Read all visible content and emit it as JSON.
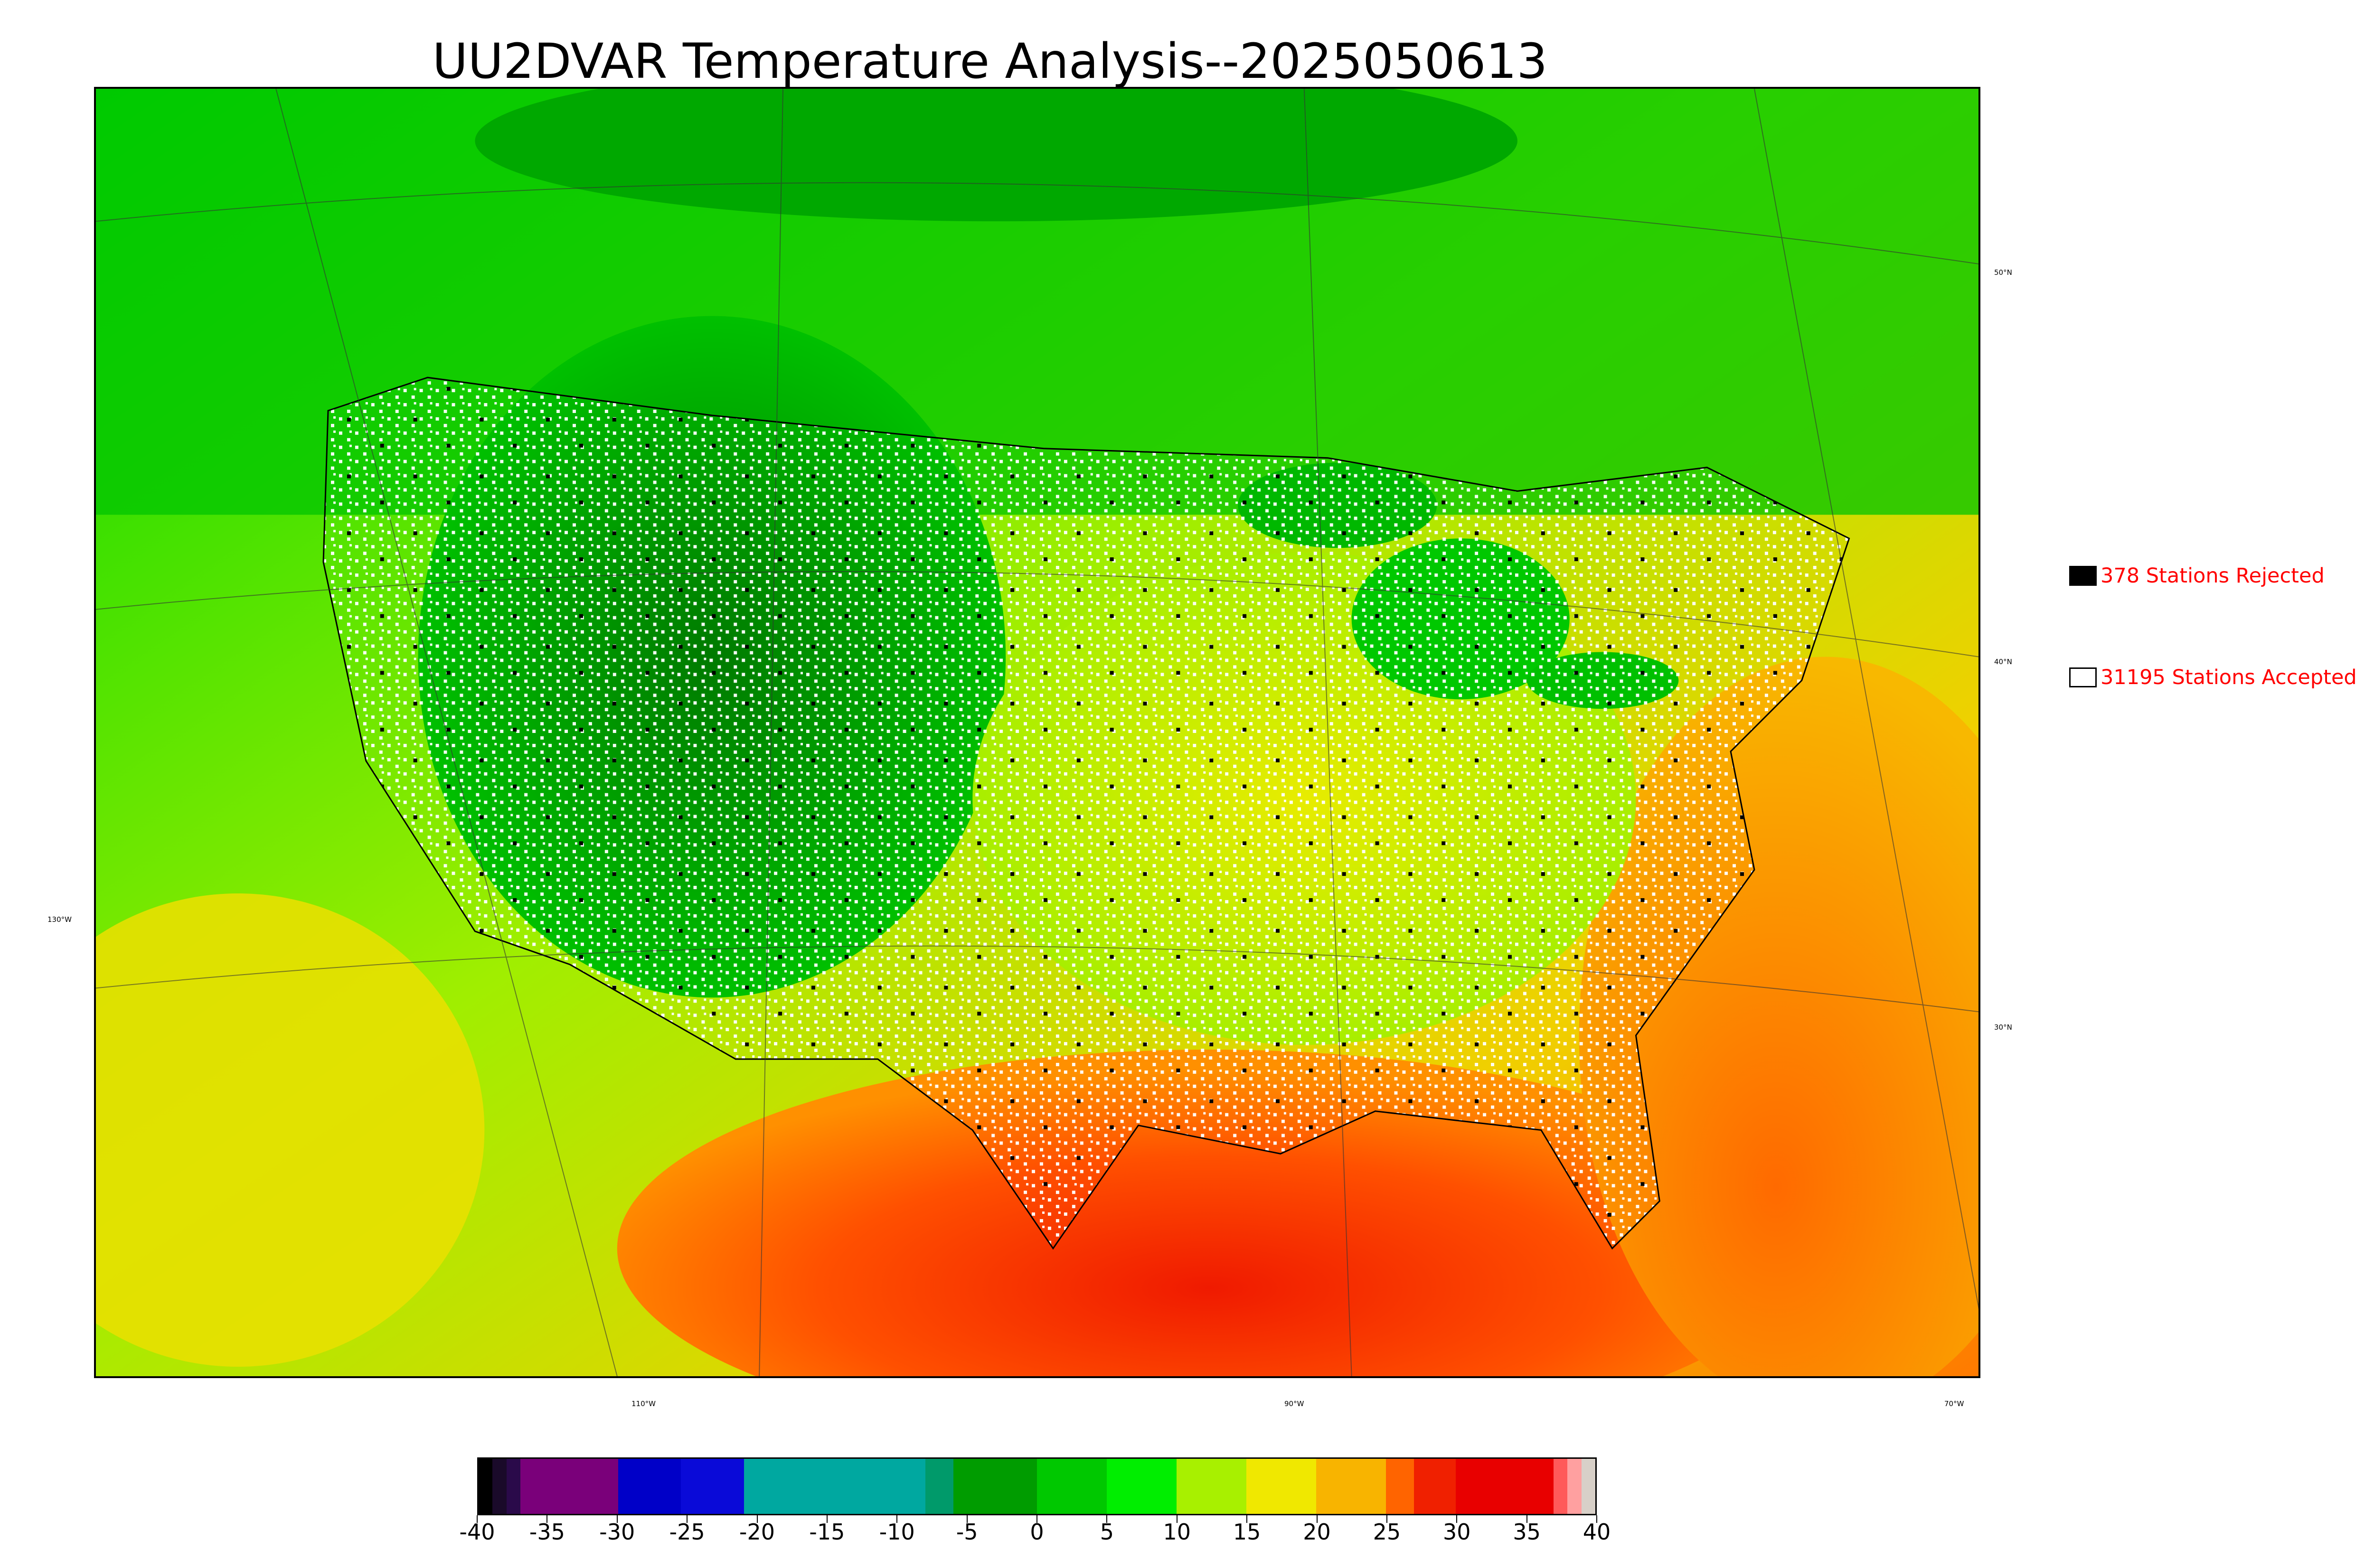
{
  "title": "UU2DVAR Temperature Analysis--2025050613",
  "legend": {
    "rejected": {
      "label": "378 Stations Rejected",
      "color": "#000000"
    },
    "accepted": {
      "label": "31195 Stations Accepted",
      "color": "#ffffff"
    },
    "text_color": "#ff0000"
  },
  "graticule": {
    "latitude_labels": [
      "50°N",
      "40°N",
      "30°N"
    ],
    "longitude_labels": [
      "130°W",
      "110°W",
      "90°W",
      "70°W"
    ]
  },
  "colorbar": {
    "ticks": [
      "-40",
      "-35",
      "-30",
      "-25",
      "-20",
      "-15",
      "-10",
      "-5",
      "0",
      "5",
      "10",
      "15",
      "20",
      "25",
      "30",
      "35",
      "40"
    ],
    "range": [
      -40,
      40
    ],
    "segments": [
      {
        "from": -40,
        "to": -39,
        "color": "#000000"
      },
      {
        "from": -39,
        "to": -38,
        "color": "#1a0a2a"
      },
      {
        "from": -38,
        "to": -37,
        "color": "#2a0a4a"
      },
      {
        "from": -37,
        "to": -30,
        "color": "#7a007a"
      },
      {
        "from": -30,
        "to": -25.5,
        "color": "#0000c8"
      },
      {
        "from": -25.5,
        "to": -21,
        "color": "#0a0ad8"
      },
      {
        "from": -21,
        "to": -8,
        "color": "#00a8a0"
      },
      {
        "from": -8,
        "to": -6,
        "color": "#009a6a"
      },
      {
        "from": -6,
        "to": 0,
        "color": "#009c00"
      },
      {
        "from": 0,
        "to": 5,
        "color": "#00c800"
      },
      {
        "from": 5,
        "to": 10,
        "color": "#00ee00"
      },
      {
        "from": 10,
        "to": 15,
        "color": "#a8f000"
      },
      {
        "from": 15,
        "to": 20,
        "color": "#f0e800"
      },
      {
        "from": 20,
        "to": 25,
        "color": "#f8b400"
      },
      {
        "from": 25,
        "to": 27,
        "color": "#ff6400"
      },
      {
        "from": 27,
        "to": 30,
        "color": "#f02000"
      },
      {
        "from": 30,
        "to": 37,
        "color": "#e80000"
      },
      {
        "from": 37,
        "to": 38,
        "color": "#ff5a5a"
      },
      {
        "from": 38,
        "to": 39,
        "color": "#ffa0a0"
      },
      {
        "from": 39,
        "to": 40,
        "color": "#d8d0c8"
      }
    ]
  }
}
